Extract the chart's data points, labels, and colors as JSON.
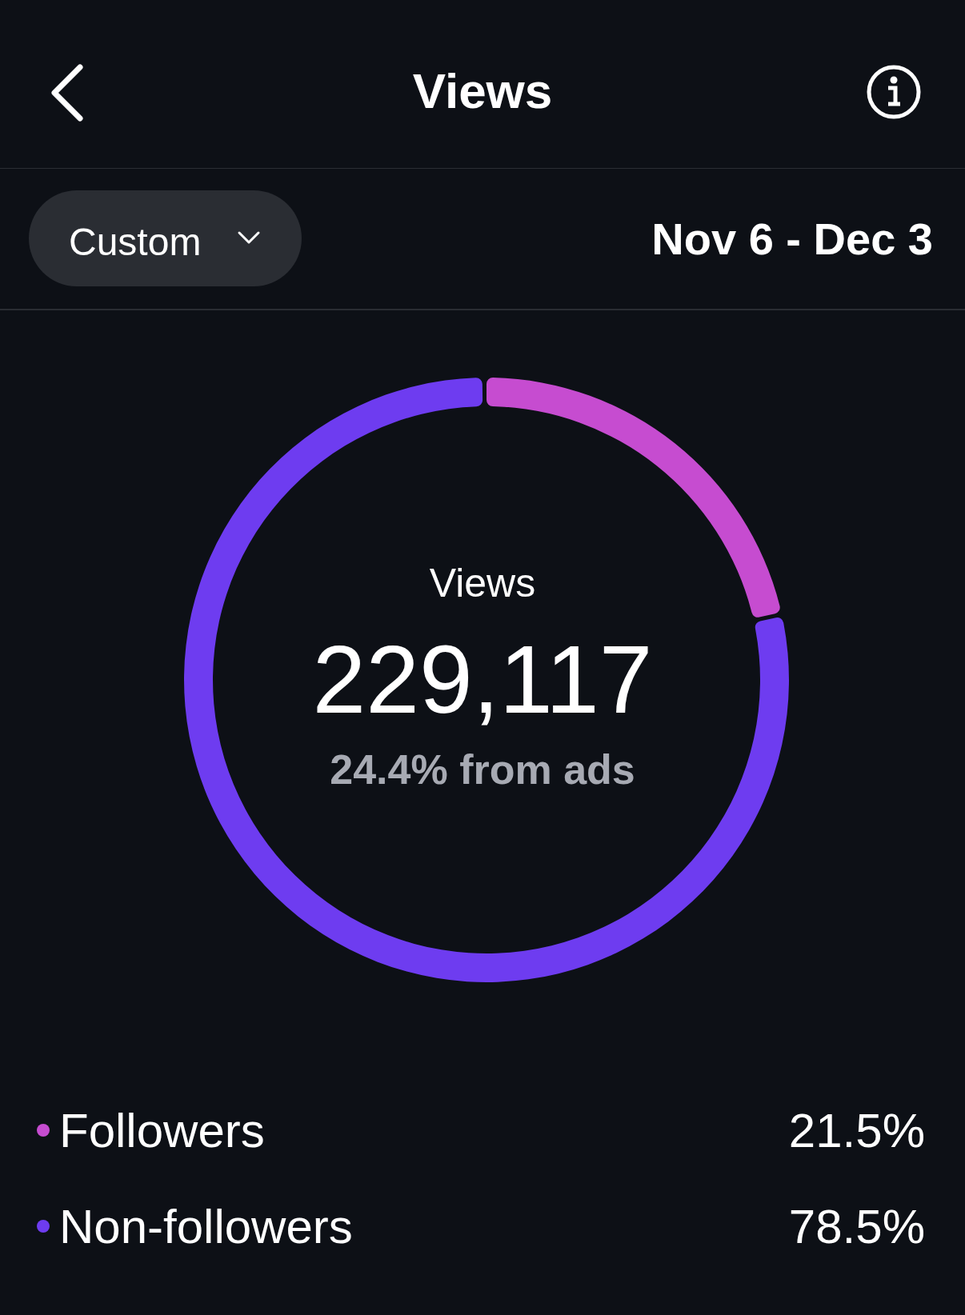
{
  "chart_data": {
    "type": "donut",
    "title": "Views",
    "categories": [
      "Followers",
      "Non-followers"
    ],
    "values": [
      21.5,
      78.5
    ],
    "colors": [
      "#c64cd0",
      "#6e3cf0"
    ],
    "value_labels": [
      "21.5%",
      "78.5%"
    ],
    "legend": "bottom",
    "annotations": [
      "Custom",
      "Nov 6 - Dec 3",
      "Views",
      "229,117",
      "24.4% from ads"
    ]
  }
}
